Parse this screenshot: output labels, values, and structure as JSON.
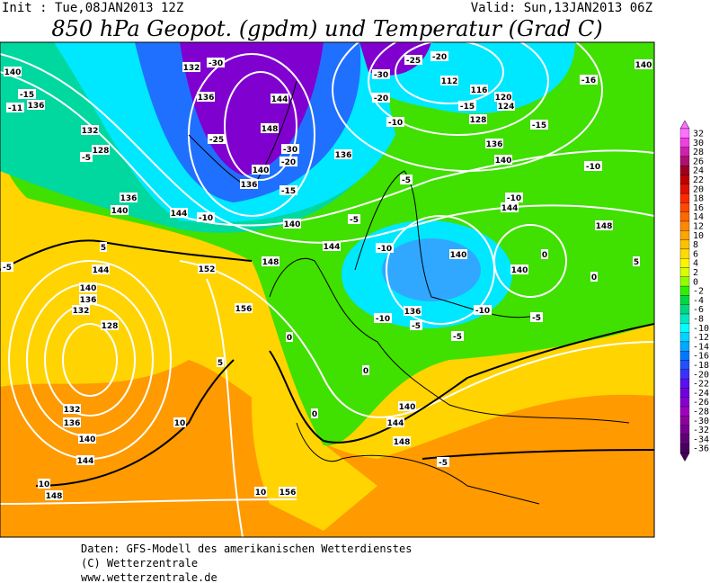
{
  "header": {
    "init": "Init : Tue,08JAN2013 12Z",
    "valid": "Valid: Sun,13JAN2013 06Z",
    "title": "850 hPa Geopot. (gpdm) und Temperatur (Grad C)"
  },
  "legend": {
    "labels": [
      "32",
      "30",
      "28",
      "26",
      "24",
      "22",
      "20",
      "18",
      "16",
      "14",
      "12",
      "10",
      "8",
      "6",
      "4",
      "2",
      "0",
      "-2",
      "-4",
      "-6",
      "-8",
      "-10",
      "-12",
      "-14",
      "-16",
      "-18",
      "-20",
      "-22",
      "-24",
      "-26",
      "-28",
      "-30",
      "-32",
      "-34",
      "-36"
    ],
    "colors": [
      "#ff70ff",
      "#f040e0",
      "#d020b0",
      "#b01070",
      "#a00020",
      "#c00000",
      "#e01000",
      "#ff2800",
      "#ff4800",
      "#ff6800",
      "#ff8800",
      "#ffa400",
      "#ffc000",
      "#ffdc00",
      "#fff400",
      "#d8ff00",
      "#90ff00",
      "#30f000",
      "#00d840",
      "#00d880",
      "#00e8c0",
      "#00ffff",
      "#00d4ff",
      "#00a8ff",
      "#0078ff",
      "#2050ff",
      "#3c30ff",
      "#5a10f0",
      "#7000e0",
      "#8800d0",
      "#a000c0",
      "#9000a0",
      "#780090",
      "#600078",
      "#480060"
    ]
  },
  "map_labels": [
    "140",
    "-15",
    "-11",
    "136",
    "132",
    "128",
    "-5",
    "136",
    "140",
    "144",
    "-10",
    "132",
    "-30",
    "136",
    "144",
    "148",
    "-25",
    "-30",
    "-20",
    "140",
    "136",
    "-15",
    "140",
    "136",
    "-5",
    "-5",
    "144",
    "-10",
    "148",
    "152",
    "156",
    "0",
    "-5",
    "136",
    "-10",
    "140",
    "140",
    "-5",
    "-10",
    "-5",
    "148",
    "140",
    "136",
    "128",
    "-15",
    "120",
    "116",
    "112",
    "124",
    "-20",
    "-25",
    "-30",
    "-20",
    "-10",
    "144",
    "-10",
    "-10",
    "-16",
    "-15",
    "140",
    "0",
    "5",
    "0",
    "132",
    "136",
    "140",
    "144",
    "148",
    "10",
    "132",
    "128",
    "136",
    "140",
    "144",
    "5",
    "-5",
    "5",
    "10",
    "10",
    "156",
    "148",
    "144",
    "140",
    "0",
    "0",
    "-5"
  ],
  "footer": [
    "Daten: GFS-Modell des amerikanischen Wetterdienstes",
    "(C) Wetterzentrale",
    "www.wetterzentrale.de"
  ]
}
